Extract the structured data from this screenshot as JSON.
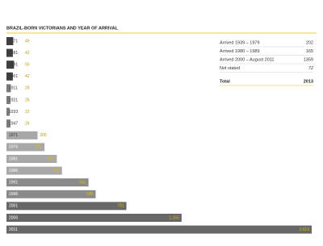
{
  "chart_data": {
    "type": "bar",
    "orientation": "horizontal",
    "title": "BRAZIL-BORN VICTORIANS AND YEAR OF ARRIVAL",
    "categories": [
      "1871",
      "1881",
      "1891",
      "1901",
      "1911",
      "1921",
      "1933",
      "1947",
      "1971",
      "1976",
      "1981",
      "1986",
      "1991",
      "1996",
      "2001",
      "2006",
      "2011"
    ],
    "values": [
      45,
      42,
      50,
      42,
      29,
      26,
      22,
      26,
      205,
      251,
      332,
      366,
      541,
      588,
      791,
      1155,
      2013
    ],
    "value_labels": [
      "45",
      "42",
      "50",
      "42",
      "29",
      "26",
      "22",
      "26",
      "205",
      "251",
      "332",
      "366",
      "541",
      "588",
      "791",
      "1,155",
      "2,013"
    ],
    "colors": [
      "#3f3f3f",
      "#3f3f3f",
      "#3f3f3f",
      "#3f3f3f",
      "#7a7a7a",
      "#7a7a7a",
      "#7a7a7a",
      "#7a7a7a",
      "#a8a8a8",
      "#a8a8a8",
      "#a8a8a8",
      "#a8a8a8",
      "#8a8a8a",
      "#8a8a8a",
      "#676767",
      "#676767",
      "#676767"
    ],
    "label_color": "#e2bd00",
    "xlim": [
      0,
      2013
    ]
  },
  "table": {
    "rows": [
      [
        "Arrived 1939 – 1979",
        "202"
      ],
      [
        "Arrived 1980 – 1989",
        "165"
      ],
      [
        "Arrived 2000 – August 2011",
        "1359"
      ],
      [
        "Not stated",
        "72"
      ]
    ],
    "total": [
      "Total",
      "2013"
    ]
  }
}
